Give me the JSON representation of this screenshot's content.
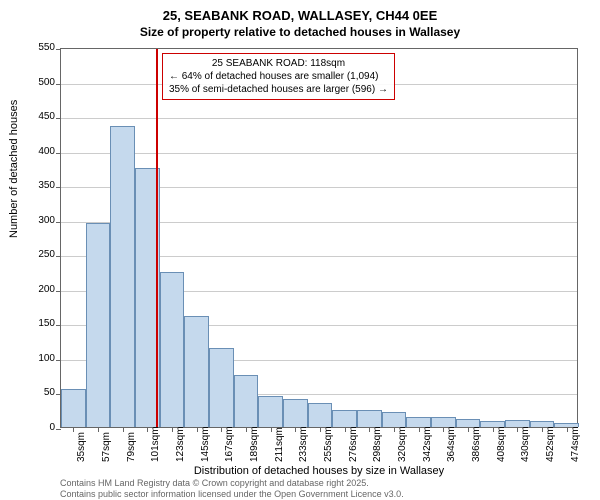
{
  "chart": {
    "type": "histogram",
    "title": "25, SEABANK ROAD, WALLASEY, CH44 0EE",
    "subtitle": "Size of property relative to detached houses in Wallasey",
    "y_axis_label": "Number of detached houses",
    "x_axis_label": "Distribution of detached houses by size in Wallasey",
    "ylim": [
      0,
      550
    ],
    "ytick_step": 50,
    "y_ticks": [
      0,
      50,
      100,
      150,
      200,
      250,
      300,
      350,
      400,
      450,
      500,
      550
    ],
    "x_labels": [
      "35sqm",
      "57sqm",
      "79sqm",
      "101sqm",
      "123sqm",
      "145sqm",
      "167sqm",
      "189sqm",
      "211sqm",
      "233sqm",
      "255sqm",
      "276sqm",
      "298sqm",
      "320sqm",
      "342sqm",
      "364sqm",
      "386sqm",
      "408sqm",
      "430sqm",
      "452sqm",
      "474sqm"
    ],
    "values": [
      55,
      295,
      435,
      375,
      225,
      160,
      115,
      75,
      45,
      40,
      35,
      25,
      25,
      22,
      15,
      15,
      12,
      8,
      10,
      8,
      6
    ],
    "bar_fill_color": "#c5d9ed",
    "bar_border_color": "#6a8fb5",
    "background_color": "#ffffff",
    "grid_color": "#cccccc",
    "axis_color": "#666666",
    "bar_width_ratio": 1.0,
    "title_fontsize": 13,
    "subtitle_fontsize": 12,
    "label_fontsize": 11,
    "tick_fontsize": 10,
    "marker": {
      "position_index": 3.85,
      "color": "#cc0000",
      "label_line1": "25 SEABANK ROAD: 118sqm",
      "label_line2": "← 64% of detached houses are smaller (1,094)",
      "label_line3": "35% of semi-detached houses are larger (596) →"
    },
    "footer_line1": "Contains HM Land Registry data © Crown copyright and database right 2025.",
    "footer_line2": "Contains public sector information licensed under the Open Government Licence v3.0."
  }
}
